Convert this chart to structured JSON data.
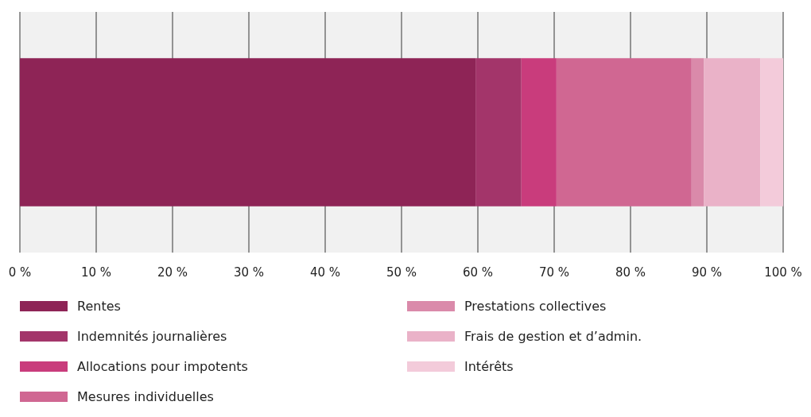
{
  "chart_data": {
    "type": "bar",
    "orientation": "horizontal",
    "stacked": true,
    "categories": [
      null
    ],
    "series": [
      {
        "name": "Rentes",
        "color": "#8e2456",
        "values": [
          59.7
        ]
      },
      {
        "name": "Indemnités journalières",
        "color": "#a3356a",
        "values": [
          6.0
        ]
      },
      {
        "name": "Allocations pour impotents",
        "color": "#c93c7c",
        "values": [
          4.6
        ]
      },
      {
        "name": "Mesures individuelles",
        "color": "#d06792",
        "values": [
          17.7
        ]
      },
      {
        "name": "Prestations collectives",
        "color": "#da8aaa",
        "values": [
          1.6
        ]
      },
      {
        "name": "Frais de gestion et d’admin.",
        "color": "#eab2c8",
        "values": [
          7.4
        ]
      },
      {
        "name": "Intérêts",
        "color": "#f3cbda",
        "values": [
          3.0
        ]
      }
    ],
    "xlim": [
      0,
      100
    ],
    "xticks": [
      {
        "value": 0,
        "label": "0 %"
      },
      {
        "value": 10,
        "label": "10 %"
      },
      {
        "value": 20,
        "label": "20 %"
      },
      {
        "value": 30,
        "label": "30 %"
      },
      {
        "value": 40,
        "label": "40 %"
      },
      {
        "value": 50,
        "label": "50 %"
      },
      {
        "value": 60,
        "label": "60 %"
      },
      {
        "value": 70,
        "label": "70 %"
      },
      {
        "value": 80,
        "label": "80 %"
      },
      {
        "value": 90,
        "label": "90 %"
      },
      {
        "value": 100,
        "label": "100 %"
      }
    ],
    "grid": "x",
    "legend": "bottom"
  }
}
